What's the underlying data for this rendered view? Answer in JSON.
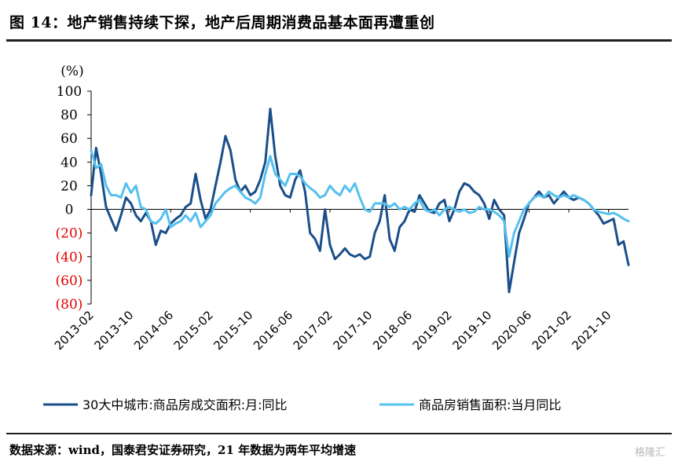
{
  "title": "图 14：地产销售持续下探，地产后周期消费品基本面再遭重创",
  "source": "数据来源：wind，国泰君安证券研究，21 年数据为两年平均增速",
  "watermark": "格隆汇",
  "chart_data": {
    "type": "line",
    "ylabel": "(%)",
    "ylim": [
      -80,
      100
    ],
    "yticks": [
      {
        "value": 100,
        "label": "100",
        "color": "#000000"
      },
      {
        "value": 80,
        "label": "80",
        "color": "#000000"
      },
      {
        "value": 60,
        "label": "60",
        "color": "#000000"
      },
      {
        "value": 40,
        "label": "40",
        "color": "#000000"
      },
      {
        "value": 20,
        "label": "20",
        "color": "#000000"
      },
      {
        "value": 0,
        "label": "0",
        "color": "#000000"
      },
      {
        "value": -20,
        "label": "(20)",
        "color": "#e00000"
      },
      {
        "value": -40,
        "label": "(40)",
        "color": "#e00000"
      },
      {
        "value": -60,
        "label": "(60)",
        "color": "#e00000"
      },
      {
        "value": -80,
        "label": "(80)",
        "color": "#e00000"
      }
    ],
    "x_start": "2013-02",
    "x_end": "2022-02",
    "xtick_labels": [
      "2013-02",
      "2013-10",
      "2014-06",
      "2015-02",
      "2015-10",
      "2016-06",
      "2017-02",
      "2017-10",
      "2018-06",
      "2019-02",
      "2019-10",
      "2020-06",
      "2021-02",
      "2021-10"
    ],
    "grid": false,
    "legend_position": "bottom",
    "series": [
      {
        "name": "30大中城市:商品房成交面积:月:同比",
        "color": "#1a4f8a",
        "points": [
          [
            "2013-02",
            12
          ],
          [
            "2013-03",
            52
          ],
          [
            "2013-04",
            30
          ],
          [
            "2013-05",
            2
          ],
          [
            "2013-06",
            -8
          ],
          [
            "2013-07",
            -18
          ],
          [
            "2013-08",
            -5
          ],
          [
            "2013-09",
            10
          ],
          [
            "2013-10",
            5
          ],
          [
            "2013-11",
            -5
          ],
          [
            "2013-12",
            -10
          ],
          [
            "2014-01",
            -3
          ],
          [
            "2014-02",
            -10
          ],
          [
            "2014-03",
            -30
          ],
          [
            "2014-04",
            -18
          ],
          [
            "2014-05",
            -20
          ],
          [
            "2014-06",
            -12
          ],
          [
            "2014-07",
            -8
          ],
          [
            "2014-08",
            -5
          ],
          [
            "2014-09",
            2
          ],
          [
            "2014-10",
            5
          ],
          [
            "2014-11",
            30
          ],
          [
            "2014-12",
            8
          ],
          [
            "2015-01",
            -8
          ],
          [
            "2015-02",
            0
          ],
          [
            "2015-03",
            20
          ],
          [
            "2015-04",
            40
          ],
          [
            "2015-05",
            62
          ],
          [
            "2015-06",
            50
          ],
          [
            "2015-07",
            25
          ],
          [
            "2015-08",
            15
          ],
          [
            "2015-09",
            20
          ],
          [
            "2015-10",
            12
          ],
          [
            "2015-11",
            15
          ],
          [
            "2015-12",
            25
          ],
          [
            "2016-01",
            40
          ],
          [
            "2016-02",
            85
          ],
          [
            "2016-03",
            45
          ],
          [
            "2016-04",
            20
          ],
          [
            "2016-05",
            12
          ],
          [
            "2016-06",
            10
          ],
          [
            "2016-07",
            25
          ],
          [
            "2016-08",
            33
          ],
          [
            "2016-09",
            15
          ],
          [
            "2016-10",
            -20
          ],
          [
            "2016-11",
            -25
          ],
          [
            "2016-12",
            -35
          ],
          [
            "2017-01",
            0
          ],
          [
            "2017-02",
            -30
          ],
          [
            "2017-03",
            -42
          ],
          [
            "2017-04",
            -38
          ],
          [
            "2017-05",
            -33
          ],
          [
            "2017-06",
            -38
          ],
          [
            "2017-07",
            -40
          ],
          [
            "2017-08",
            -38
          ],
          [
            "2017-09",
            -42
          ],
          [
            "2017-10",
            -40
          ],
          [
            "2017-11",
            -20
          ],
          [
            "2017-12",
            -10
          ],
          [
            "2018-01",
            12
          ],
          [
            "2018-02",
            -25
          ],
          [
            "2018-03",
            -35
          ],
          [
            "2018-04",
            -15
          ],
          [
            "2018-05",
            -10
          ],
          [
            "2018-06",
            0
          ],
          [
            "2018-07",
            -2
          ],
          [
            "2018-08",
            12
          ],
          [
            "2018-09",
            5
          ],
          [
            "2018-10",
            -2
          ],
          [
            "2018-11",
            -3
          ],
          [
            "2018-12",
            5
          ],
          [
            "2019-01",
            8
          ],
          [
            "2019-02",
            -10
          ],
          [
            "2019-03",
            0
          ],
          [
            "2019-04",
            15
          ],
          [
            "2019-05",
            22
          ],
          [
            "2019-06",
            20
          ],
          [
            "2019-07",
            15
          ],
          [
            "2019-08",
            12
          ],
          [
            "2019-09",
            5
          ],
          [
            "2019-10",
            -8
          ],
          [
            "2019-11",
            8
          ],
          [
            "2019-12",
            0
          ],
          [
            "2020-01",
            -5
          ],
          [
            "2020-02",
            -70
          ],
          [
            "2020-03",
            -45
          ],
          [
            "2020-04",
            -20
          ],
          [
            "2020-05",
            -8
          ],
          [
            "2020-06",
            5
          ],
          [
            "2020-07",
            10
          ],
          [
            "2020-08",
            15
          ],
          [
            "2020-09",
            10
          ],
          [
            "2020-10",
            12
          ],
          [
            "2020-11",
            5
          ],
          [
            "2020-12",
            10
          ],
          [
            "2021-01",
            15
          ],
          [
            "2021-02",
            10
          ],
          [
            "2021-03",
            8
          ],
          [
            "2021-04",
            10
          ],
          [
            "2021-05",
            8
          ],
          [
            "2021-06",
            5
          ],
          [
            "2021-07",
            0
          ],
          [
            "2021-08",
            -5
          ],
          [
            "2021-09",
            -12
          ],
          [
            "2021-10",
            -10
          ],
          [
            "2021-11",
            -8
          ],
          [
            "2021-12",
            -30
          ],
          [
            "2022-01",
            -27
          ],
          [
            "2022-02",
            -47
          ]
        ]
      },
      {
        "name": "商品房销售面积:当月同比",
        "color": "#55c1ee",
        "points": [
          [
            "2013-02",
            50
          ],
          [
            "2013-03",
            35
          ],
          [
            "2013-04",
            38
          ],
          [
            "2013-05",
            20
          ],
          [
            "2013-06",
            12
          ],
          [
            "2013-07",
            12
          ],
          [
            "2013-08",
            10
          ],
          [
            "2013-09",
            22
          ],
          [
            "2013-10",
            14
          ],
          [
            "2013-11",
            20
          ],
          [
            "2013-12",
            2
          ],
          [
            "2014-01",
            0
          ],
          [
            "2014-02",
            -10
          ],
          [
            "2014-03",
            -12
          ],
          [
            "2014-04",
            -8
          ],
          [
            "2014-05",
            0
          ],
          [
            "2014-06",
            -15
          ],
          [
            "2014-07",
            -12
          ],
          [
            "2014-08",
            -10
          ],
          [
            "2014-09",
            -5
          ],
          [
            "2014-10",
            -10
          ],
          [
            "2014-11",
            -3
          ],
          [
            "2014-12",
            -15
          ],
          [
            "2015-01",
            -10
          ],
          [
            "2015-02",
            -5
          ],
          [
            "2015-03",
            5
          ],
          [
            "2015-04",
            10
          ],
          [
            "2015-05",
            15
          ],
          [
            "2015-06",
            18
          ],
          [
            "2015-07",
            20
          ],
          [
            "2015-08",
            15
          ],
          [
            "2015-09",
            10
          ],
          [
            "2015-10",
            8
          ],
          [
            "2015-11",
            5
          ],
          [
            "2015-12",
            10
          ],
          [
            "2016-01",
            30
          ],
          [
            "2016-02",
            45
          ],
          [
            "2016-03",
            30
          ],
          [
            "2016-04",
            25
          ],
          [
            "2016-05",
            20
          ],
          [
            "2016-06",
            30
          ],
          [
            "2016-07",
            30
          ],
          [
            "2016-08",
            28
          ],
          [
            "2016-09",
            22
          ],
          [
            "2016-10",
            18
          ],
          [
            "2016-11",
            15
          ],
          [
            "2016-12",
            10
          ],
          [
            "2017-01",
            12
          ],
          [
            "2017-02",
            20
          ],
          [
            "2017-03",
            15
          ],
          [
            "2017-04",
            12
          ],
          [
            "2017-05",
            20
          ],
          [
            "2017-06",
            15
          ],
          [
            "2017-07",
            22
          ],
          [
            "2017-08",
            10
          ],
          [
            "2017-09",
            0
          ],
          [
            "2017-10",
            -2
          ],
          [
            "2017-11",
            5
          ],
          [
            "2017-12",
            5
          ],
          [
            "2018-01",
            5
          ],
          [
            "2018-02",
            2
          ],
          [
            "2018-03",
            5
          ],
          [
            "2018-04",
            0
          ],
          [
            "2018-05",
            2
          ],
          [
            "2018-06",
            0
          ],
          [
            "2018-07",
            5
          ],
          [
            "2018-08",
            8
          ],
          [
            "2018-09",
            0
          ],
          [
            "2018-10",
            -2
          ],
          [
            "2018-11",
            0
          ],
          [
            "2018-12",
            -5
          ],
          [
            "2019-01",
            0
          ],
          [
            "2019-02",
            2
          ],
          [
            "2019-03",
            0
          ],
          [
            "2019-04",
            -2
          ],
          [
            "2019-05",
            0
          ],
          [
            "2019-06",
            -3
          ],
          [
            "2019-07",
            -2
          ],
          [
            "2019-08",
            2
          ],
          [
            "2019-09",
            0
          ],
          [
            "2019-10",
            0
          ],
          [
            "2019-11",
            -2
          ],
          [
            "2019-12",
            -5
          ],
          [
            "2020-01",
            -10
          ],
          [
            "2020-02",
            -40
          ],
          [
            "2020-03",
            -20
          ],
          [
            "2020-04",
            -10
          ],
          [
            "2020-05",
            0
          ],
          [
            "2020-06",
            5
          ],
          [
            "2020-07",
            10
          ],
          [
            "2020-08",
            12
          ],
          [
            "2020-09",
            10
          ],
          [
            "2020-10",
            15
          ],
          [
            "2020-11",
            12
          ],
          [
            "2020-12",
            10
          ],
          [
            "2021-01",
            12
          ],
          [
            "2021-02",
            10
          ],
          [
            "2021-03",
            12
          ],
          [
            "2021-04",
            10
          ],
          [
            "2021-05",
            8
          ],
          [
            "2021-06",
            5
          ],
          [
            "2021-07",
            0
          ],
          [
            "2021-08",
            -2
          ],
          [
            "2021-09",
            -3
          ],
          [
            "2021-10",
            -4
          ],
          [
            "2021-11",
            -3
          ],
          [
            "2021-12",
            -5
          ],
          [
            "2022-01",
            -8
          ],
          [
            "2022-02",
            -10
          ]
        ]
      }
    ]
  }
}
